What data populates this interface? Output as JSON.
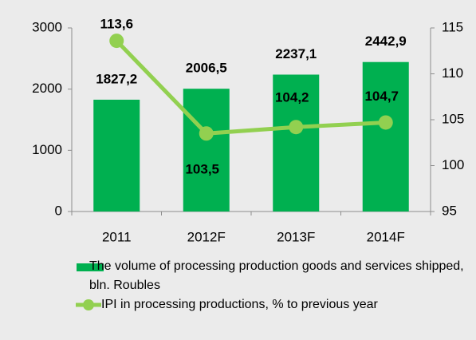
{
  "chart_data": {
    "type": "bar_line",
    "categories": [
      "2011",
      "2012F",
      "2013F",
      "2014F"
    ],
    "series": [
      {
        "name": "The volume of processing production goods and services shipped, bln. Roubles",
        "type": "bar",
        "color": "#00b050",
        "axis": "y",
        "values": [
          1827.2,
          2006.5,
          2237.1,
          2442.9
        ],
        "value_labels": [
          "1827,2",
          "2006,5",
          "2237,1",
          "2442,9"
        ]
      },
      {
        "name": "IPI in processing productions, % to previous year",
        "type": "line",
        "color": "#92d050",
        "axis": "y2",
        "values": [
          113.6,
          103.5,
          104.2,
          104.7
        ],
        "value_labels": [
          "113,6",
          "103,5",
          "104,2",
          "104,7"
        ]
      }
    ],
    "ylim": [
      0,
      3000
    ],
    "yticks": [
      0,
      1000,
      2000,
      3000
    ],
    "y2lim": [
      95,
      115
    ],
    "y2ticks": [
      95,
      100,
      105,
      110,
      115
    ],
    "legend": "bottom"
  }
}
